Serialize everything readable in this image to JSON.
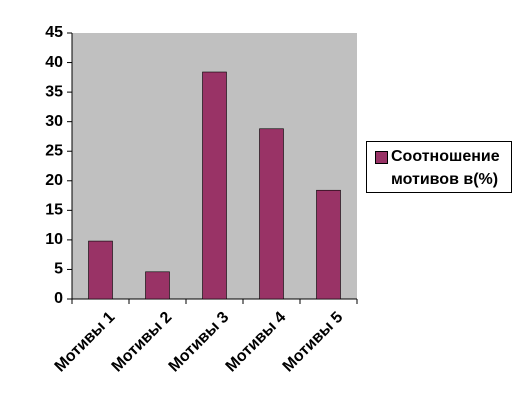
{
  "chart_data": {
    "type": "bar",
    "categories": [
      "Мотивы 1",
      "Мотивы 2",
      "Мотивы 3",
      "Мотивы 4",
      "Мотивы 5"
    ],
    "series": [
      {
        "name": "Соотношение мотивов в(%)",
        "color": "#993366",
        "values": [
          9.8,
          4.6,
          38.4,
          28.8,
          18.4
        ]
      }
    ],
    "ylim": [
      0,
      45
    ],
    "yticks": [
      0,
      5,
      10,
      15,
      20,
      25,
      30,
      35,
      40,
      45
    ],
    "plot_background": "#c0c0c0",
    "legend": "right"
  }
}
